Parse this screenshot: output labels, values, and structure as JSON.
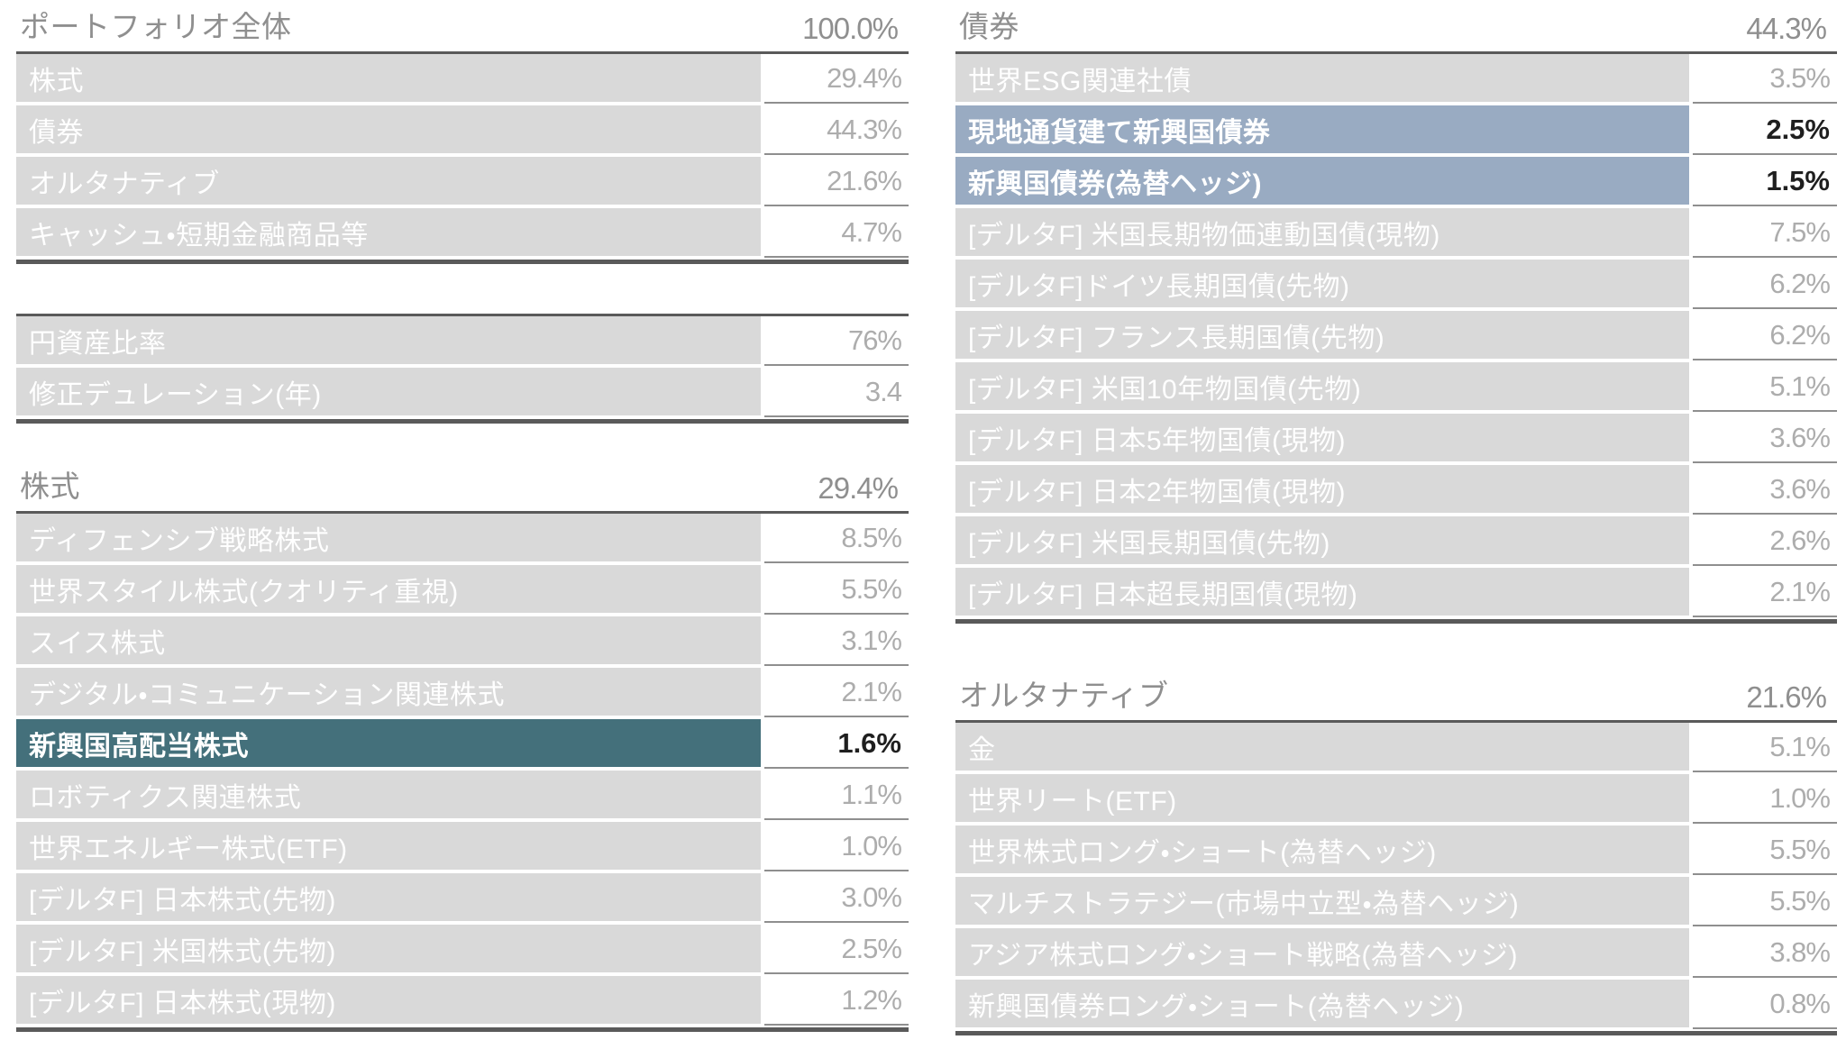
{
  "colors": {
    "label_cell_bg": "#d9d9d9",
    "highlight_teal": "#44707b",
    "highlight_blue": "#99abc2",
    "border_dark": "#5a5a5a",
    "border_row": "#8f8f8f",
    "text_gray": "#adadad",
    "text_header": "#8f8f8f",
    "text_white": "#ffffff",
    "text_black": "#1f1f1f"
  },
  "tables": {
    "portfolio": {
      "title": "ポートフォリオ全体",
      "total": "100.0%",
      "rows": [
        {
          "label": "株式",
          "value": "29.4%",
          "highlight": "none"
        },
        {
          "label": "債券",
          "value": "44.3%",
          "highlight": "none"
        },
        {
          "label": "オルタナティブ",
          "value": "21.6%",
          "highlight": "none"
        },
        {
          "label": "キャッシュ・短期金融商品等",
          "value": "4.7%",
          "highlight": "none"
        }
      ]
    },
    "metrics": {
      "rows": [
        {
          "label": "円資産比率",
          "value": "76%",
          "highlight": "none"
        },
        {
          "label": "修正デュレーション(年)",
          "value": "3.4",
          "highlight": "none"
        }
      ]
    },
    "equity": {
      "title": "株式",
      "total": "29.4%",
      "rows": [
        {
          "label": "ディフェンシブ戦略株式",
          "value": "8.5%",
          "highlight": "none"
        },
        {
          "label": "世界スタイル株式(クオリティ重視)",
          "value": "5.5%",
          "highlight": "none"
        },
        {
          "label": "スイス株式",
          "value": "3.1%",
          "highlight": "none"
        },
        {
          "label": "デジタル・コミュニケーション関連株式",
          "value": "2.1%",
          "highlight": "none"
        },
        {
          "label": "新興国高配当株式",
          "value": "1.6%",
          "highlight": "teal"
        },
        {
          "label": "ロボティクス関連株式",
          "value": "1.1%",
          "highlight": "none"
        },
        {
          "label": "世界エネルギー株式(ETF)",
          "value": "1.0%",
          "highlight": "none"
        },
        {
          "label": "[デルタF] 日本株式(先物)",
          "value": "3.0%",
          "highlight": "none"
        },
        {
          "label": "[デルタF] 米国株式(先物)",
          "value": "2.5%",
          "highlight": "none"
        },
        {
          "label": "[デルタF] 日本株式(現物)",
          "value": "1.2%",
          "highlight": "none"
        }
      ]
    },
    "bonds": {
      "title": "債券",
      "total": "44.3%",
      "rows": [
        {
          "label": "世界ESG関連社債",
          "value": "3.5%",
          "highlight": "none"
        },
        {
          "label": "現地通貨建て新興国債券",
          "value": "2.5%",
          "highlight": "blue"
        },
        {
          "label": "新興国債券(為替ヘッジ)",
          "value": "1.5%",
          "highlight": "blue"
        },
        {
          "label": "[デルタF] 米国長期物価連動国債(現物)",
          "value": "7.5%",
          "highlight": "none"
        },
        {
          "label": "[デルタF]ドイツ長期国債(先物)",
          "value": "6.2%",
          "highlight": "none"
        },
        {
          "label": "[デルタF] フランス長期国債(先物)",
          "value": "6.2%",
          "highlight": "none"
        },
        {
          "label": "[デルタF] 米国10年物国債(先物)",
          "value": "5.1%",
          "highlight": "none"
        },
        {
          "label": "[デルタF] 日本5年物国債(現物)",
          "value": "3.6%",
          "highlight": "none"
        },
        {
          "label": "[デルタF] 日本2年物国債(現物)",
          "value": "3.6%",
          "highlight": "none"
        },
        {
          "label": "[デルタF] 米国長期国債(先物)",
          "value": "2.6%",
          "highlight": "none"
        },
        {
          "label": "[デルタF] 日本超長期国債(現物)",
          "value": "2.1%",
          "highlight": "none"
        }
      ]
    },
    "alternatives": {
      "title": "オルタナティブ",
      "total": "21.6%",
      "rows": [
        {
          "label": "金",
          "value": "5.1%",
          "highlight": "none"
        },
        {
          "label": "世界リート(ETF)",
          "value": "1.0%",
          "highlight": "none"
        },
        {
          "label": "世界株式ロング・ショート(為替ヘッジ)",
          "value": "5.5%",
          "highlight": "none"
        },
        {
          "label": "マルチストラテジー(市場中立型・為替ヘッジ)",
          "value": "5.5%",
          "highlight": "none"
        },
        {
          "label": "アジア株式ロング・ショート戦略(為替ヘッジ)",
          "value": "3.8%",
          "highlight": "none"
        },
        {
          "label": "新興国債券ロング・ショート(為替ヘッジ)",
          "value": "0.8%",
          "highlight": "none"
        }
      ]
    }
  }
}
